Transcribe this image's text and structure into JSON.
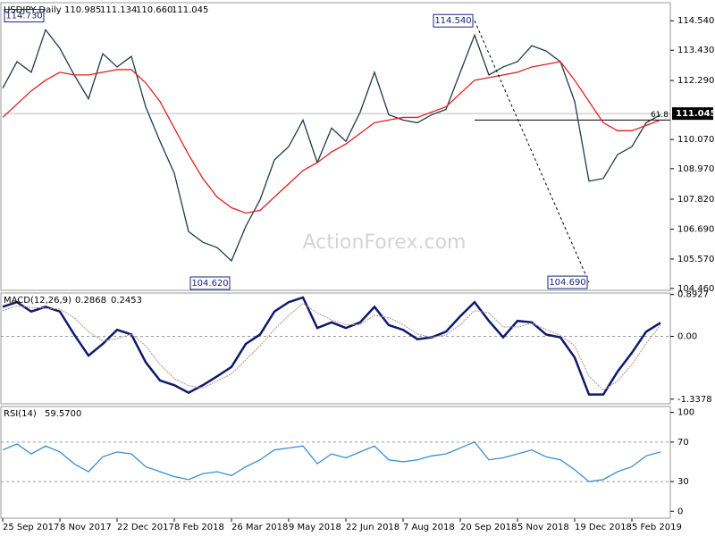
{
  "chart_data": [
    {
      "type": "line",
      "title": "USDJPY,Daily",
      "readout": [
        "110.985",
        "111.134",
        "110.660",
        "111.045"
      ],
      "watermark": "ActionForex.com",
      "categories": [
        "25 Sep 2017",
        null,
        null,
        null,
        "8 Nov 2017",
        null,
        null,
        null,
        "22 Dec 2017",
        null,
        null,
        null,
        "8 Feb 2018",
        null,
        null,
        null,
        "26 Mar 2018",
        null,
        null,
        null,
        "9 May 2018",
        null,
        null,
        null,
        "22 Jun 2018",
        null,
        null,
        null,
        "7 Aug 2018",
        null,
        null,
        null,
        "20 Sep 2018",
        null,
        null,
        null,
        "5 Nov 2018",
        null,
        null,
        null,
        "19 Dec 2018",
        null,
        null,
        null,
        "5 Feb 2019",
        null,
        null
      ],
      "series": [
        {
          "color": "#1f3b4d",
          "values": [
            112.0,
            113.0,
            112.6,
            114.2,
            113.5,
            112.5,
            111.6,
            113.3,
            112.8,
            113.2,
            111.3,
            110.0,
            108.8,
            106.6,
            106.2,
            106.0,
            105.5,
            106.8,
            107.8,
            109.3,
            109.8,
            110.8,
            109.2,
            110.5,
            110.0,
            111.1,
            112.6,
            111.0,
            110.8,
            110.7,
            111.0,
            111.2,
            112.6,
            114.0,
            112.5,
            112.8,
            113.0,
            113.6,
            113.4,
            113.0,
            111.5,
            108.5,
            108.6,
            109.5,
            109.8,
            110.7,
            111.0
          ]
        },
        {
          "color": "#e02020",
          "values": [
            110.9,
            111.4,
            111.9,
            112.3,
            112.6,
            112.5,
            112.5,
            112.6,
            112.7,
            112.7,
            112.2,
            111.5,
            110.5,
            109.5,
            108.6,
            107.9,
            107.5,
            107.3,
            107.4,
            107.9,
            108.4,
            108.9,
            109.2,
            109.6,
            109.9,
            110.3,
            110.7,
            110.8,
            110.9,
            110.9,
            111.1,
            111.3,
            111.8,
            112.3,
            112.4,
            112.5,
            112.6,
            112.8,
            112.9,
            113.0,
            112.3,
            111.5,
            110.7,
            110.4,
            110.4,
            110.6,
            110.8
          ]
        }
      ],
      "ylim": [
        104.39,
        115.22
      ],
      "yticks": [
        {
          "value": 114.54,
          "label": "114.540"
        },
        {
          "value": 113.43,
          "label": "113.430"
        },
        {
          "value": 112.29,
          "label": "112.290"
        },
        {
          "value": 110.07,
          "label": "110.070"
        },
        {
          "value": 108.97,
          "label": "108.970"
        },
        {
          "value": 107.82,
          "label": "107.820"
        },
        {
          "value": 106.69,
          "label": "106.690"
        },
        {
          "value": 105.57,
          "label": "105.570"
        },
        {
          "value": 104.46,
          "label": "104.460"
        }
      ],
      "annotations": [
        {
          "value": 114.73,
          "label": "114.730",
          "at": 3
        },
        {
          "value": 114.54,
          "label": "114.540",
          "at": 33
        },
        {
          "value": 104.62,
          "label": "104.620",
          "at": 16
        },
        {
          "value": 104.69,
          "label": "104.690",
          "at": 41
        }
      ],
      "fib": {
        "value": 110.8,
        "label": "61.8",
        "from": 33
      },
      "last": {
        "value": 111.045,
        "label": "111.045"
      }
    },
    {
      "type": "line",
      "title": "MACD(12,26,9)",
      "readout": [
        "0.2868",
        "0.2453"
      ],
      "series": [
        {
          "color": "#0d1a6e",
          "values": [
            0.63,
            0.73,
            0.53,
            0.63,
            0.53,
            0.04,
            -0.41,
            -0.16,
            0.14,
            0.04,
            -0.55,
            -0.94,
            -1.04,
            -1.2,
            -1.04,
            -0.85,
            -0.65,
            -0.16,
            0.04,
            0.53,
            0.73,
            0.83,
            0.18,
            0.3,
            0.18,
            0.3,
            0.63,
            0.24,
            0.14,
            -0.06,
            -0.02,
            0.1,
            0.43,
            0.73,
            0.33,
            -0.02,
            0.33,
            0.3,
            0.04,
            -0.02,
            -0.45,
            -1.24,
            -1.24,
            -0.75,
            -0.35,
            0.1,
            0.29
          ]
        },
        {
          "color": "#b89090",
          "values": [
            0.55,
            0.65,
            0.62,
            0.6,
            0.58,
            0.4,
            0.1,
            -0.1,
            -0.05,
            0.05,
            -0.2,
            -0.6,
            -0.9,
            -1.05,
            -1.1,
            -0.95,
            -0.8,
            -0.5,
            -0.2,
            0.15,
            0.45,
            0.7,
            0.5,
            0.35,
            0.25,
            0.25,
            0.45,
            0.4,
            0.25,
            0.05,
            -0.02,
            0.03,
            0.25,
            0.55,
            0.5,
            0.2,
            0.2,
            0.28,
            0.15,
            0.02,
            -0.2,
            -0.85,
            -1.15,
            -0.95,
            -0.6,
            -0.15,
            0.25
          ]
        }
      ],
      "ylim": [
        -1.437,
        0.925
      ],
      "yticks": [
        0.8927,
        {
          "value": 0,
          "label": "0.00"
        },
        -1.3378
      ],
      "levels": [
        0
      ]
    },
    {
      "type": "line",
      "title": "RSI(14)",
      "readout": [
        "59.5700"
      ],
      "series": [
        {
          "color": "#3a8fd0",
          "values": [
            62,
            68,
            58,
            66,
            60,
            48,
            40,
            55,
            60,
            58,
            45,
            40,
            35,
            32,
            38,
            40,
            36,
            45,
            52,
            62,
            64,
            66,
            48,
            58,
            54,
            60,
            66,
            52,
            50,
            52,
            56,
            58,
            64,
            70,
            52,
            54,
            58,
            62,
            55,
            52,
            42,
            30,
            32,
            40,
            45,
            56,
            60
          ]
        }
      ],
      "ylim": [
        -7,
        106
      ],
      "yticks": [
        100,
        70,
        30,
        0
      ],
      "levels": [
        70,
        30
      ]
    }
  ]
}
